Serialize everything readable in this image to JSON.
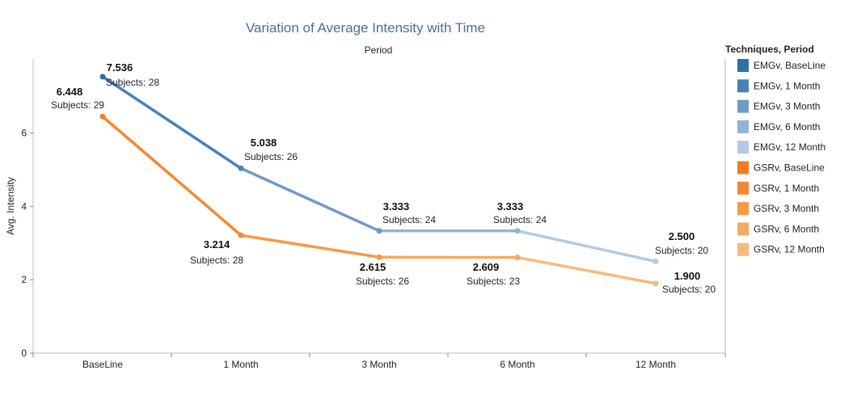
{
  "chart_data": {
    "type": "line",
    "title": "Variation of Average Intensity with Time",
    "column_header": "Period",
    "xlabel": "",
    "ylabel": "Avg. Intensity",
    "categories": [
      "BaseLine",
      "1 Month",
      "3 Month",
      "6 Month",
      "12 Month"
    ],
    "ylim": [
      0,
      8
    ],
    "yticks": [
      0,
      2,
      4,
      6
    ],
    "grid": false,
    "legend_position": "right",
    "legend_title": "Techniques, Period",
    "series": [
      {
        "name": "EMGv",
        "values": [
          7.536,
          5.038,
          3.333,
          3.333,
          2.5
        ],
        "value_labels": [
          "7.536",
          "5.038",
          "3.333",
          "3.333",
          "2.500"
        ],
        "subject_labels": [
          "Subjects: 28",
          "Subjects: 26",
          "Subjects: 24",
          "Subjects: 24",
          "Subjects: 20"
        ],
        "colors": [
          "#2f6fa8",
          "#4a80b8",
          "#7099c7",
          "#93b2d7",
          "#b3c9e4"
        ]
      },
      {
        "name": "GSRv",
        "values": [
          6.448,
          3.214,
          2.615,
          2.609,
          1.9
        ],
        "value_labels": [
          "6.448",
          "3.214",
          "2.615",
          "2.609",
          "1.900"
        ],
        "subject_labels": [
          "Subjects: 29",
          "Subjects: 28",
          "Subjects: 26",
          "Subjects: 23",
          "Subjects: 20"
        ],
        "colors": [
          "#f07d20",
          "#f28a32",
          "#f49a4a",
          "#f6aa62",
          "#f8ba7c"
        ]
      }
    ],
    "legend": [
      {
        "label": "EMGv, BaseLine",
        "color": "#2f6fa8"
      },
      {
        "label": "EMGv, 1 Month",
        "color": "#4a80b8"
      },
      {
        "label": "EMGv, 3 Month",
        "color": "#7099c7"
      },
      {
        "label": "EMGv, 6 Month",
        "color": "#93b2d7"
      },
      {
        "label": "EMGv, 12 Month",
        "color": "#b3c9e4"
      },
      {
        "label": "GSRv, BaseLine",
        "color": "#f07d20"
      },
      {
        "label": "GSRv, 1 Month",
        "color": "#f28a32"
      },
      {
        "label": "GSRv, 3 Month",
        "color": "#f49a4a"
      },
      {
        "label": "GSRv, 6 Month",
        "color": "#f6aa62"
      },
      {
        "label": "GSRv, 12 Month",
        "color": "#f8ba7c"
      }
    ]
  }
}
